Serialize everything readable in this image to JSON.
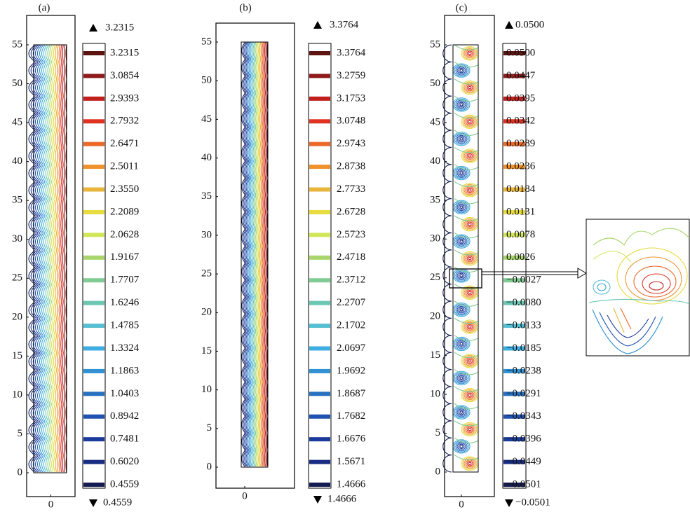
{
  "colormap": [
    "#5e1410",
    "#8e1a1a",
    "#c2201f",
    "#de3222",
    "#ea6a2a",
    "#ef922e",
    "#e8b63a",
    "#e6dc40",
    "#d2e65a",
    "#a8d66c",
    "#82cc94",
    "#6cc6b4",
    "#56bfd2",
    "#3eaee0",
    "#3090d2",
    "#2870c0",
    "#2052b0",
    "#1c3c9c",
    "#182c82",
    "#141c50"
  ],
  "chart_data": [
    {
      "type": "contour",
      "title": "(a)",
      "xlim": [
        -3.1,
        3.1
      ],
      "xticks": [
        0
      ],
      "ylim": [
        -3.06,
        58.78
      ],
      "yticks": [
        0,
        5,
        10,
        15,
        20,
        25,
        30,
        35,
        40,
        45,
        50,
        55
      ],
      "levels": [
        3.2315,
        3.0854,
        2.9393,
        2.7932,
        2.6471,
        2.5011,
        2.355,
        2.2089,
        2.0628,
        1.9167,
        1.7707,
        1.6246,
        1.4785,
        1.3324,
        1.1863,
        1.0403,
        0.8942,
        0.7481,
        0.602,
        0.4559
      ],
      "level_labels": [
        "3.2315",
        "3.0854",
        "2.9393",
        "2.7932",
        "2.6471",
        "2.5011",
        "2.3550",
        "2.2089",
        "2.0628",
        "1.9167",
        "1.7707",
        "1.6246",
        "1.4785",
        "1.3324",
        "1.1863",
        "1.0403",
        "0.8942",
        "0.7481",
        "0.6020",
        "0.4559"
      ]
    },
    {
      "type": "contour",
      "title": "(b)",
      "xlim": [
        -3.71,
        6.43
      ],
      "xticks": [
        0
      ],
      "ylim": [
        -2.72,
        57.45
      ],
      "yticks": [
        0,
        5,
        10,
        15,
        20,
        25,
        30,
        35,
        40,
        45,
        50,
        55
      ],
      "levels": [
        3.3764,
        3.2759,
        3.1753,
        3.0748,
        2.9743,
        2.8738,
        2.7733,
        2.6728,
        2.5723,
        2.4718,
        2.3712,
        2.2707,
        2.1702,
        2.0697,
        1.9692,
        1.8687,
        1.7682,
        1.6676,
        1.5671,
        1.4666
      ],
      "level_labels": [
        "3.3764",
        "3.2759",
        "3.1753",
        "3.0748",
        "2.9743",
        "2.8738",
        "2.7733",
        "2.6728",
        "2.5723",
        "2.4718",
        "2.3712",
        "2.2707",
        "2.1702",
        "2.0697",
        "1.9692",
        "1.8687",
        "1.7682",
        "1.6676",
        "1.5671",
        "1.4666"
      ]
    },
    {
      "type": "contour",
      "title": "(c)",
      "xlim": [
        -2.16,
        4.24
      ],
      "xticks": [
        0
      ],
      "ylim": [
        -3.16,
        58.79
      ],
      "yticks": [
        0,
        5,
        10,
        15,
        20,
        25,
        30,
        35,
        40,
        45,
        50,
        55
      ],
      "levels": [
        0.05,
        0.0447,
        0.0395,
        0.0342,
        0.0289,
        0.0236,
        0.0184,
        0.0131,
        0.0078,
        0.0026,
        -0.0027,
        -0.008,
        -0.0133,
        -0.0185,
        -0.0238,
        -0.0291,
        -0.0343,
        -0.0396,
        -0.0449,
        -0.0501
      ],
      "level_labels": [
        "0.0500",
        "0.0447",
        "0.0395",
        "0.0342",
        "0.0289",
        "0.0236",
        "0.0184",
        "0.0131",
        "0.0078",
        "0.0026",
        "−0.0027",
        "−0.0080",
        "−0.0133",
        "−0.0185",
        "−0.0238",
        "−0.0291",
        "−0.0343",
        "−0.0396",
        "−0.0449",
        "−0.0501"
      ]
    }
  ]
}
